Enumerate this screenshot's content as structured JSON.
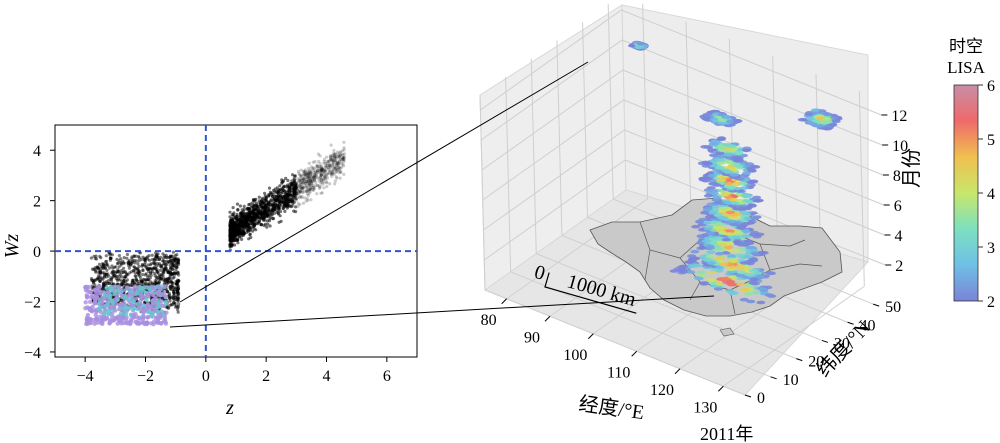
{
  "figure_label": "2011年",
  "chart_data": [
    {
      "type": "scatter",
      "xlabel": "z",
      "ylabel": "Wz",
      "xlim": [
        -5,
        7
      ],
      "ylim": [
        -4.2,
        5
      ],
      "xticks": [
        "−4",
        "−2",
        "0",
        "2",
        "4",
        "6"
      ],
      "xtick_values": [
        -4,
        -2,
        0,
        2,
        4,
        6
      ],
      "yticks": [
        "4",
        "2",
        "0",
        "−2",
        "−4"
      ],
      "ytick_values": [
        4,
        2,
        0,
        -2,
        -4
      ],
      "reference_lines": {
        "x": 0,
        "y": 0,
        "style": "dashed",
        "color": "#3355cc"
      },
      "series": [
        {
          "color": "#000000",
          "clusters": [
            {
              "x_range": [
                0.8,
                4.6
              ],
              "trend_slope": 0.78,
              "trend_intercept": 0.1,
              "spread": 0.5
            },
            {
              "x_range": [
                -3.8,
                -0.9
              ],
              "y_range": [
                -2.2,
                -0.2
              ],
              "spread": 0.4
            }
          ]
        },
        {
          "color": "#a98ee0",
          "clusters": [
            {
              "x_range": [
                -4.0,
                -1.3
              ],
              "y_range": [
                -2.9,
                -1.4
              ]
            }
          ]
        }
      ],
      "grid": false
    },
    {
      "type": "scatter",
      "xlabel": "经度/°E",
      "ylabel": "纬度/°N",
      "zlabel": "月份",
      "xlim": [
        75,
        135
      ],
      "ylim": [
        0,
        55
      ],
      "zlim": [
        0,
        13
      ],
      "xticks": [
        "80",
        "90",
        "100",
        "110",
        "120",
        "130"
      ],
      "xtick_values": [
        80,
        90,
        100,
        110,
        120,
        130
      ],
      "yticks": [
        "0",
        "10",
        "20",
        "30",
        "40",
        "50"
      ],
      "ytick_values": [
        0,
        10,
        20,
        30,
        40,
        50
      ],
      "zticks": [
        "2",
        "4",
        "6",
        "8",
        "10",
        "12"
      ],
      "ztick_values": [
        2,
        4,
        6,
        8,
        10,
        12
      ],
      "scale_bar": {
        "label_zero": "0",
        "label": "1000 km"
      },
      "colorbar": {
        "title_line1": "时空",
        "title_line2": "LISA",
        "ticks": [
          "6",
          "5",
          "4",
          "3",
          "2"
        ],
        "tick_values": [
          6,
          5,
          4,
          3,
          2
        ],
        "range": [
          2,
          6
        ],
        "colormap": [
          "#7b83d8",
          "#6fc0e6",
          "#7de0c0",
          "#c8e66a",
          "#f0c050",
          "#ef6a6a",
          "#c88ea6"
        ]
      },
      "month_layers": [
        {
          "month": 1,
          "lon": [
            102,
            122
          ],
          "lat": [
            28,
            36
          ],
          "lisa_max": 6
        },
        {
          "month": 2,
          "lon": [
            104,
            120
          ],
          "lat": [
            30,
            37
          ],
          "lisa_max": 5.5
        },
        {
          "month": 3,
          "lon": [
            105,
            118
          ],
          "lat": [
            30,
            38
          ],
          "lisa_max": 5
        },
        {
          "month": 4,
          "lon": [
            105,
            117
          ],
          "lat": [
            31,
            38
          ],
          "lisa_max": 5
        },
        {
          "month": 5,
          "lon": [
            106,
            116
          ],
          "lat": [
            32,
            39
          ],
          "lisa_max": 5.5
        },
        {
          "month": 6,
          "lon": [
            106,
            116
          ],
          "lat": [
            33,
            40
          ],
          "lisa_max": 5.5
        },
        {
          "month": 7,
          "lon": [
            106,
            115
          ],
          "lat": [
            33,
            40
          ],
          "lisa_max": 6
        },
        {
          "month": 8,
          "lon": [
            106,
            115
          ],
          "lat": [
            33,
            40
          ],
          "lisa_max": 5
        },
        {
          "month": 9,
          "lon": [
            106,
            114
          ],
          "lat": [
            34,
            40
          ],
          "lisa_max": 4.5
        },
        {
          "month": 11,
          "lon": [
            106,
            112
          ],
          "lat": [
            34,
            38
          ],
          "lisa_max": 4
        },
        {
          "month": 12,
          "lon": [
            84,
            86
          ],
          "lat": [
            44,
            46
          ],
          "lisa_max": 5
        },
        {
          "month": 12,
          "lon": [
            124,
            130
          ],
          "lat": [
            42,
            48
          ],
          "lisa_max": 5
        }
      ],
      "grid": true
    }
  ],
  "colors": {
    "reference_line": "#3355cc",
    "hot_cluster": "#000000",
    "cold_cluster": "#a98ee0",
    "pane": "#ececec",
    "map_fill": "#c9c9c9"
  }
}
